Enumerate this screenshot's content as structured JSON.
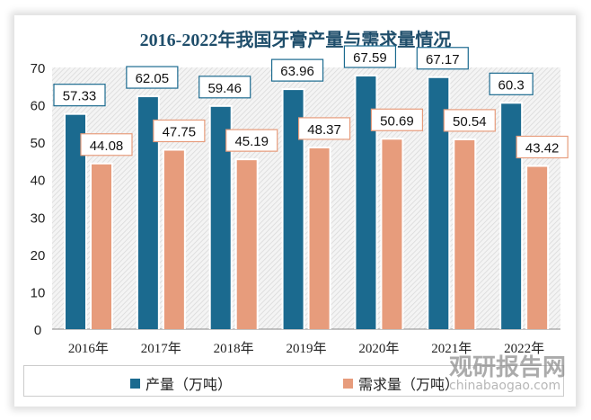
{
  "chart_data": {
    "type": "bar",
    "title": "2016-2022年我国牙膏产量与需求量情况",
    "categories": [
      "2016年",
      "2017年",
      "2018年",
      "2019年",
      "2020年",
      "2021年",
      "2022年"
    ],
    "series": [
      {
        "name": "产量（万吨）",
        "color": "#1b6a8f",
        "values": [
          57.33,
          62.05,
          59.46,
          63.96,
          67.59,
          67.17,
          60.3
        ]
      },
      {
        "name": "需求量（万吨）",
        "color": "#e79c7c",
        "values": [
          44.08,
          47.75,
          45.19,
          48.37,
          50.69,
          50.54,
          43.42
        ]
      }
    ],
    "ylim": [
      0,
      70
    ],
    "yticks": [
      0,
      10,
      20,
      30,
      40,
      50,
      60,
      70
    ],
    "legend": "bottom",
    "grid": false
  },
  "watermark": {
    "cn": "观研报告网",
    "en": "chinabaogao.com"
  }
}
